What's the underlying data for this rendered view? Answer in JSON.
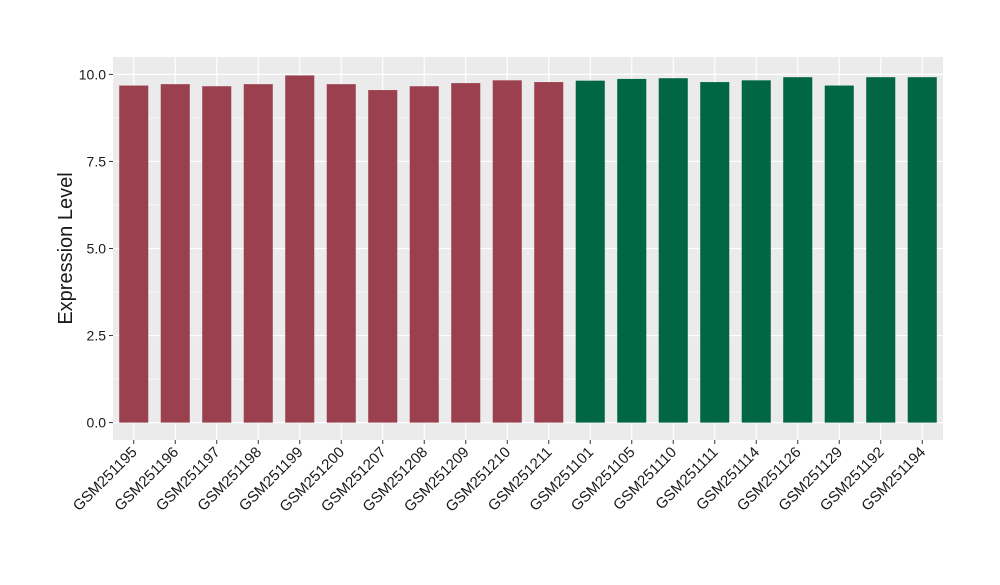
{
  "chart_data": {
    "type": "bar",
    "title": "",
    "xlabel": "",
    "ylabel": "Expression Level",
    "ylim": [
      -0.5,
      10.5
    ],
    "yticks": [
      0.0,
      2.5,
      5.0,
      7.5,
      10.0
    ],
    "ytick_labels": [
      "0.0",
      "2.5",
      "5.0",
      "7.5",
      "10.0"
    ],
    "grid": true,
    "legend": "none",
    "categories": [
      "GSM251195",
      "GSM251196",
      "GSM251197",
      "GSM251198",
      "GSM251199",
      "GSM251200",
      "GSM251207",
      "GSM251208",
      "GSM251209",
      "GSM251210",
      "GSM251211",
      "GSM251101",
      "GSM251105",
      "GSM251110",
      "GSM251111",
      "GSM251114",
      "GSM251126",
      "GSM251129",
      "GSM251192",
      "GSM251194"
    ],
    "values": [
      9.68,
      9.72,
      9.66,
      9.72,
      9.97,
      9.72,
      9.55,
      9.66,
      9.75,
      9.83,
      9.78,
      9.82,
      9.87,
      9.89,
      9.78,
      9.83,
      9.92,
      9.68,
      9.92,
      9.92
    ],
    "bar_colors": [
      "#9a404e",
      "#9a404e",
      "#9a404e",
      "#9a404e",
      "#9a404e",
      "#9a404e",
      "#9a404e",
      "#9a404e",
      "#9a404e",
      "#9a404e",
      "#9a404e",
      "#006643",
      "#006643",
      "#006643",
      "#006643",
      "#006643",
      "#006643",
      "#006643",
      "#006643",
      "#006643"
    ],
    "panel_background": "#ebebeb",
    "gridline_color": "#ffffff"
  }
}
